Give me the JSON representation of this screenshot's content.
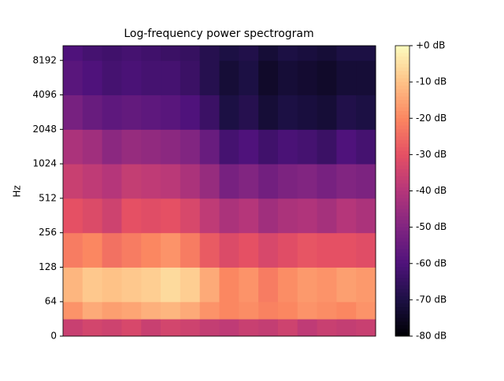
{
  "chart_data": {
    "type": "spectrogram",
    "title": "Log-frequency power spectrogram",
    "ylabel": "Hz",
    "yscale": "log",
    "ylim": [
      0,
      11025
    ],
    "yticks": [
      0,
      64,
      128,
      256,
      512,
      1024,
      2048,
      4096,
      8192
    ],
    "y_bins": [
      0,
      32,
      64,
      128,
      256,
      512,
      1024,
      2048,
      4096,
      8192,
      11025
    ],
    "z": [
      [
        -36,
        -34,
        -35,
        -33,
        -36,
        -34,
        -35,
        -37,
        -38,
        -36,
        -37,
        -35,
        -38,
        -36,
        -37,
        -36
      ],
      [
        -18,
        -14,
        -16,
        -15,
        -13,
        -12,
        -14,
        -18,
        -20,
        -19,
        -21,
        -20,
        -18,
        -19,
        -20,
        -18
      ],
      [
        -12,
        -9,
        -10,
        -9,
        -8,
        -6,
        -8,
        -14,
        -20,
        -18,
        -22,
        -19,
        -17,
        -18,
        -16,
        -17
      ],
      [
        -22,
        -20,
        -24,
        -22,
        -20,
        -18,
        -22,
        -28,
        -32,
        -30,
        -33,
        -31,
        -29,
        -30,
        -30,
        -31
      ],
      [
        -30,
        -32,
        -35,
        -30,
        -31,
        -30,
        -33,
        -38,
        -42,
        -40,
        -44,
        -42,
        -41,
        -43,
        -40,
        -42
      ],
      [
        -36,
        -38,
        -40,
        -37,
        -38,
        -39,
        -42,
        -46,
        -52,
        -50,
        -53,
        -51,
        -50,
        -52,
        -50,
        -51
      ],
      [
        -42,
        -44,
        -48,
        -46,
        -47,
        -48,
        -50,
        -55,
        -62,
        -60,
        -63,
        -61,
        -62,
        -64,
        -60,
        -62
      ],
      [
        -52,
        -55,
        -57,
        -56,
        -57,
        -58,
        -60,
        -64,
        -70,
        -68,
        -72,
        -70,
        -71,
        -72,
        -69,
        -70
      ],
      [
        -58,
        -60,
        -62,
        -61,
        -62,
        -62,
        -64,
        -68,
        -72,
        -70,
        -74,
        -72,
        -73,
        -74,
        -72,
        -72
      ],
      [
        -60,
        -62,
        -63,
        -62,
        -63,
        -64,
        -65,
        -68,
        -70,
        -69,
        -72,
        -70,
        -71,
        -72,
        -70,
        -70
      ]
    ],
    "colormap": "magma",
    "clim": [
      -80,
      0
    ],
    "cticks": [
      {
        "value": 0,
        "label": "+0 dB"
      },
      {
        "value": -10,
        "label": "-10 dB"
      },
      {
        "value": -20,
        "label": "-20 dB"
      },
      {
        "value": -30,
        "label": "-30 dB"
      },
      {
        "value": -40,
        "label": "-40 dB"
      },
      {
        "value": -50,
        "label": "-50 dB"
      },
      {
        "value": -60,
        "label": "-60 dB"
      },
      {
        "value": -70,
        "label": "-70 dB"
      },
      {
        "value": -80,
        "label": "-80 dB"
      }
    ]
  }
}
